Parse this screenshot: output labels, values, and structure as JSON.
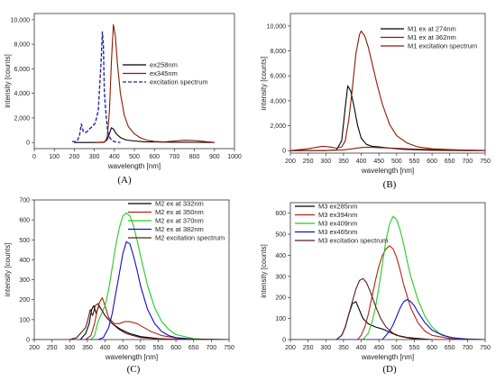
{
  "chart_data": [
    {
      "type": "line",
      "panel_label": "(A)",
      "xlabel": "wavelength [nm]",
      "ylabel": "intensity [counts]",
      "xlim": [
        0,
        1000
      ],
      "ylim": [
        -500,
        10500
      ],
      "xticks": [
        0,
        100,
        200,
        300,
        400,
        500,
        600,
        700,
        800,
        900,
        1000
      ],
      "yticks": [
        0,
        2000,
        4000,
        6000,
        8000,
        10000
      ],
      "ytick_labels": [
        "0",
        "2,000",
        "4,000",
        "6,000",
        "8,000",
        "10,000"
      ],
      "legend_position": "center-right",
      "series": [
        {
          "name": "ex258nm",
          "color": "#000000",
          "dash": "solid",
          "x": [
            200,
            300,
            350,
            365,
            375,
            385,
            395,
            410,
            430,
            460,
            500,
            550,
            600,
            700,
            800,
            900
          ],
          "y": [
            0,
            0,
            30,
            250,
            700,
            1200,
            1100,
            700,
            400,
            200,
            120,
            60,
            40,
            20,
            10,
            0
          ]
        },
        {
          "name": "ex345nm",
          "color": "#8b1a00",
          "dash": "solid",
          "x": [
            300,
            340,
            355,
            365,
            375,
            385,
            395,
            405,
            415,
            430,
            450,
            470,
            500,
            530,
            560,
            600,
            650,
            700,
            750,
            800,
            850,
            900
          ],
          "y": [
            0,
            0,
            100,
            500,
            2500,
            6500,
            9600,
            8700,
            6500,
            4000,
            2200,
            1300,
            700,
            380,
            200,
            80,
            50,
            120,
            180,
            150,
            80,
            0
          ]
        },
        {
          "name": "excitation spectrum",
          "color": "#2222aa",
          "dash": "dashed",
          "x": [
            190,
            200,
            215,
            225,
            235,
            245,
            255,
            265,
            275,
            290,
            305,
            320,
            335,
            340,
            345,
            350,
            355,
            360,
            368,
            380,
            395,
            410,
            430
          ],
          "y": [
            100,
            50,
            150,
            500,
            1500,
            900,
            800,
            900,
            1100,
            1300,
            1600,
            2600,
            7000,
            9000,
            8000,
            4200,
            3000,
            2000,
            800,
            300,
            100,
            30,
            0
          ]
        }
      ]
    },
    {
      "type": "line",
      "panel_label": "(B)",
      "xlabel": "wavelength [nm]",
      "ylabel": "intensity [counts]",
      "xlim": [
        200,
        750
      ],
      "ylim": [
        -200,
        11000
      ],
      "xticks": [
        200,
        250,
        300,
        350,
        400,
        450,
        500,
        550,
        600,
        650,
        700,
        750
      ],
      "yticks": [
        0,
        2000,
        4000,
        6000,
        8000,
        10000
      ],
      "ytick_labels": [
        "0",
        "2,000",
        "4,000",
        "6,000",
        "8,000",
        "10,000"
      ],
      "legend_position": "top-right",
      "series": [
        {
          "name": "M1 ex at 274nm",
          "color": "#000000",
          "dash": "solid",
          "x": [
            200,
            300,
            330,
            345,
            355,
            362,
            370,
            380,
            390,
            400,
            415,
            430,
            450,
            480,
            520,
            600,
            700,
            750
          ],
          "y": [
            0,
            0,
            50,
            800,
            3500,
            5200,
            4800,
            3500,
            2000,
            1000,
            500,
            350,
            300,
            200,
            100,
            30,
            0,
            0
          ]
        },
        {
          "name": "M1 ex at 362nm",
          "color": "#8b1a00",
          "dash": "solid",
          "x": [
            200,
            250,
            270,
            290,
            310,
            330,
            345,
            355,
            365,
            375,
            385,
            395,
            400,
            410,
            420,
            430,
            445,
            460,
            480,
            500,
            530,
            560,
            600,
            650,
            700,
            750
          ],
          "y": [
            0,
            150,
            250,
            350,
            300,
            200,
            300,
            800,
            2500,
            5000,
            7800,
            9300,
            9600,
            9200,
            8300,
            7100,
            5300,
            3700,
            2100,
            1200,
            600,
            300,
            150,
            80,
            40,
            20
          ]
        },
        {
          "name": "M1 excitation spectrum",
          "color": "#8b1a00",
          "dash": "solid",
          "x": [
            200,
            250,
            300,
            350,
            375,
            400,
            420,
            450,
            500,
            550,
            600,
            650,
            700,
            750
          ],
          "y": [
            0,
            10,
            20,
            60,
            150,
            250,
            280,
            240,
            180,
            120,
            80,
            50,
            30,
            20
          ]
        }
      ]
    },
    {
      "type": "line",
      "panel_label": "(C)",
      "xlabel": "wavelength [nm]",
      "ylabel": "intensity [counts]",
      "xlim": [
        200,
        750
      ],
      "ylim": [
        0,
        700
      ],
      "xticks": [
        200,
        250,
        300,
        350,
        400,
        450,
        500,
        550,
        600,
        650,
        700,
        750
      ],
      "yticks": [
        0,
        100,
        200,
        300,
        400,
        500,
        600,
        700
      ],
      "ytick_labels": [
        "0",
        "100",
        "200",
        "300",
        "400",
        "500",
        "600",
        "700"
      ],
      "legend_position": "top-right",
      "series": [
        {
          "name": "M2 ex at 332nm",
          "color": "#000000",
          "dash": "solid",
          "x": [
            200,
            330,
            345,
            355,
            362,
            368,
            375,
            382,
            390,
            400,
            420,
            445,
            470,
            500,
            550,
            600,
            750
          ],
          "y": [
            0,
            0,
            30,
            80,
            150,
            170,
            130,
            170,
            150,
            120,
            80,
            50,
            30,
            15,
            5,
            0,
            0
          ]
        },
        {
          "name": "M2 ex at 350nm",
          "color": "#b52010",
          "dash": "solid",
          "x": [
            200,
            345,
            360,
            370,
            378,
            385,
            392,
            400,
            410,
            425,
            440,
            455,
            470,
            490,
            510,
            530,
            560,
            600,
            650,
            750
          ],
          "y": [
            0,
            0,
            20,
            80,
            150,
            190,
            210,
            170,
            110,
            80,
            80,
            90,
            90,
            80,
            60,
            40,
            20,
            8,
            2,
            0
          ]
        },
        {
          "name": "M2 ex at 370nm",
          "color": "#22cc22",
          "dash": "solid",
          "x": [
            200,
            360,
            370,
            380,
            390,
            400,
            410,
            420,
            430,
            440,
            450,
            460,
            470,
            480,
            490,
            500,
            520,
            540,
            560,
            580,
            600,
            650,
            700,
            750
          ],
          "y": [
            0,
            0,
            20,
            90,
            130,
            170,
            250,
            360,
            470,
            560,
            620,
            635,
            620,
            570,
            500,
            420,
            270,
            160,
            90,
            50,
            25,
            5,
            0,
            0
          ]
        },
        {
          "name": "M2 ex at 382nm",
          "color": "#1010c0",
          "dash": "solid",
          "x": [
            200,
            380,
            395,
            410,
            420,
            430,
            440,
            450,
            460,
            470,
            480,
            490,
            500,
            520,
            540,
            560,
            580,
            600,
            650,
            750
          ],
          "y": [
            0,
            0,
            10,
            60,
            130,
            230,
            330,
            430,
            490,
            480,
            420,
            350,
            270,
            150,
            80,
            40,
            20,
            10,
            2,
            0
          ]
        },
        {
          "name": "M2 excitation spectrum",
          "color": "#5a1a1a",
          "dash": "solid",
          "x": [
            200,
            300,
            320,
            335,
            345,
            350,
            358,
            365,
            372,
            380,
            390,
            400,
            420,
            440,
            460,
            480,
            500,
            550,
            750
          ],
          "y": [
            0,
            0,
            10,
            40,
            60,
            90,
            150,
            120,
            170,
            180,
            150,
            120,
            80,
            50,
            30,
            20,
            10,
            3,
            0
          ]
        }
      ]
    },
    {
      "type": "line",
      "panel_label": "(D)",
      "xlabel": "wavelength [nm]",
      "ylabel": "intensity [counts]",
      "xlim": [
        200,
        750
      ],
      "ylim": [
        0,
        650
      ],
      "xticks": [
        200,
        250,
        300,
        350,
        400,
        450,
        500,
        550,
        600,
        650,
        700,
        750
      ],
      "yticks": [
        0,
        100,
        200,
        300,
        400,
        500,
        600
      ],
      "ytick_labels": [
        "0",
        "100",
        "200",
        "300",
        "400",
        "500",
        "600"
      ],
      "legend_position": "top-left",
      "series": [
        {
          "name": "M3 ex285nm",
          "color": "#000000",
          "dash": "solid",
          "x": [
            200,
            330,
            345,
            355,
            365,
            375,
            385,
            395,
            405,
            420,
            440,
            460,
            480,
            500,
            530,
            560,
            600,
            750
          ],
          "y": [
            0,
            0,
            20,
            60,
            120,
            170,
            180,
            140,
            100,
            75,
            60,
            50,
            35,
            20,
            10,
            5,
            0,
            0
          ]
        },
        {
          "name": "M3 ex394nm",
          "color": "#b52010",
          "dash": "solid",
          "x": [
            200,
            390,
            400,
            410,
            420,
            430,
            440,
            450,
            460,
            470,
            480,
            490,
            500,
            510,
            520,
            540,
            560,
            580,
            600,
            650,
            750
          ],
          "y": [
            0,
            0,
            20,
            60,
            120,
            200,
            280,
            350,
            400,
            430,
            445,
            430,
            390,
            330,
            260,
            150,
            80,
            40,
            20,
            5,
            0
          ]
        },
        {
          "name": "M3 ex409nm",
          "color": "#22cc22",
          "dash": "solid",
          "x": [
            200,
            405,
            420,
            430,
            440,
            450,
            460,
            470,
            480,
            490,
            500,
            510,
            520,
            530,
            540,
            560,
            580,
            600,
            620,
            650,
            700,
            750
          ],
          "y": [
            0,
            0,
            30,
            80,
            150,
            250,
            360,
            470,
            550,
            585,
            570,
            520,
            450,
            370,
            300,
            190,
            110,
            60,
            30,
            10,
            0,
            0
          ]
        },
        {
          "name": "M3 ex465nm",
          "color": "#1010c0",
          "dash": "solid",
          "x": [
            200,
            460,
            480,
            490,
            500,
            510,
            520,
            530,
            540,
            550,
            560,
            580,
            600,
            630,
            660,
            700,
            750
          ],
          "y": [
            0,
            0,
            40,
            70,
            110,
            150,
            180,
            190,
            180,
            160,
            130,
            80,
            45,
            20,
            8,
            2,
            0
          ]
        },
        {
          "name": "M3 excitation spectrum",
          "color": "#5a1a1a",
          "dash": "solid",
          "x": [
            200,
            330,
            345,
            355,
            365,
            375,
            385,
            395,
            405,
            415,
            425,
            440,
            455,
            470,
            490,
            510,
            540,
            580,
            750
          ],
          "y": [
            0,
            0,
            20,
            60,
            120,
            180,
            240,
            280,
            290,
            270,
            230,
            160,
            100,
            60,
            30,
            15,
            5,
            0,
            0
          ]
        }
      ]
    }
  ]
}
